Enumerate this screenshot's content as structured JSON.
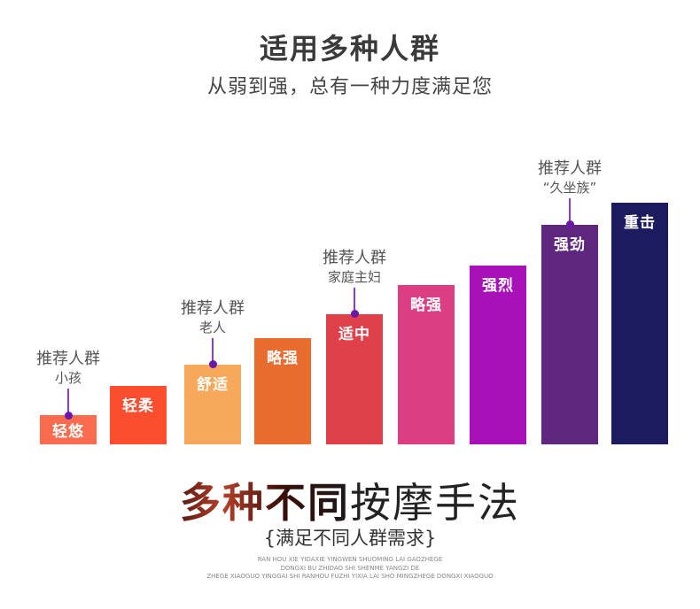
{
  "header": {
    "title": "适用多种人群",
    "subtitle": "从弱到强，总有一种力度满足您"
  },
  "chart_data": {
    "type": "bar",
    "title": "适用多种人群",
    "categories": [
      "轻悠",
      "轻柔",
      "舒适",
      "略强",
      "适中",
      "略强",
      "强烈",
      "强劲",
      "重击"
    ],
    "values": [
      12,
      24,
      33,
      44,
      54,
      66,
      74,
      91,
      100
    ],
    "ylim": [
      0,
      100
    ],
    "grid": false,
    "colors": [
      "#fb6c4e",
      "#fc4e2e",
      "#f7a85a",
      "#e86c2e",
      "#df404a",
      "#dc3e84",
      "#a911b8",
      "#5f2680",
      "#1d1b60"
    ],
    "annotations": [
      {
        "bar": 0,
        "title": "推荐人群",
        "sub": "小孩"
      },
      {
        "bar": 2,
        "title": "推荐人群",
        "sub": "老人"
      },
      {
        "bar": 4,
        "title": "推荐人群",
        "sub": "家庭主妇"
      },
      {
        "bar": 7,
        "title": "推荐人群",
        "sub": "“久坐族”"
      }
    ]
  },
  "footer": {
    "headline_bold": "多种不同",
    "headline_thin": "按摩手法",
    "tagline": "{满足不同人群需求}",
    "pinyin": [
      "RAN HOU XIE YIDAXIE YINGWEN SHUOMING LAI GAOZHEGE",
      "DONGXI BU ZHIDAO SHI SHENME YANGZI DE",
      "ZHEGE XIAOGUO YINGGAI SHI RANHOU FUZHI YIXIA LAI SHO MINGZHEGE DONGXI XIAOGUO"
    ]
  }
}
